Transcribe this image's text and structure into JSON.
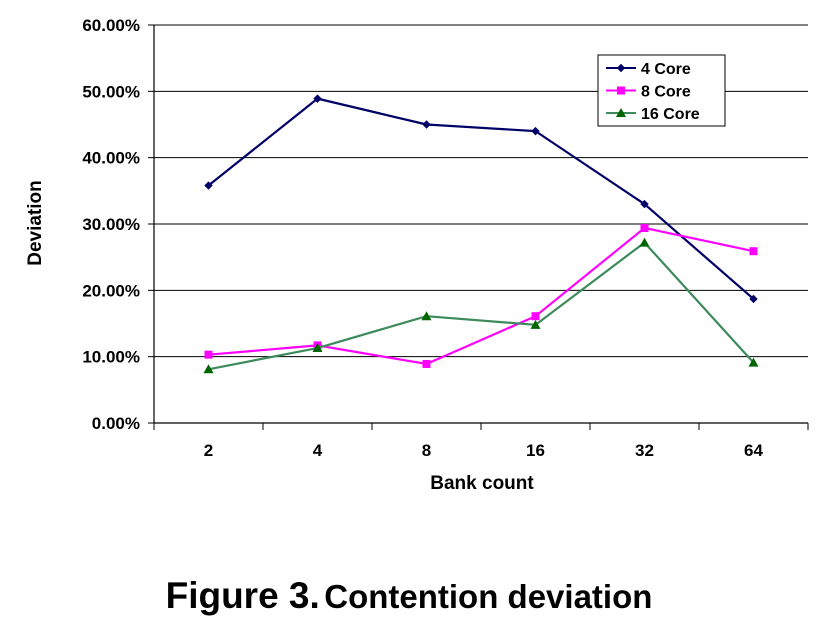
{
  "chart_data": {
    "type": "line",
    "categories": [
      "2",
      "4",
      "8",
      "16",
      "32",
      "64"
    ],
    "series": [
      {
        "name": "4 Core",
        "values": [
          35.8,
          48.9,
          45.0,
          44.0,
          33.0,
          18.7
        ],
        "color": "#000066",
        "marker": "diamond"
      },
      {
        "name": "8 Core",
        "values": [
          10.3,
          11.7,
          8.9,
          16.1,
          29.4,
          25.9
        ],
        "color": "#ff00ff",
        "marker": "square"
      },
      {
        "name": "16 Core",
        "values": [
          8.1,
          11.3,
          16.1,
          14.8,
          27.2,
          9.1
        ],
        "color": "#3d8a5c",
        "marker_color": "#006600",
        "marker": "triangle"
      }
    ],
    "yticks": [
      "0.00%",
      "10.00%",
      "20.00%",
      "30.00%",
      "40.00%",
      "50.00%",
      "60.00%"
    ],
    "ylim": [
      0,
      60
    ],
    "xlabel": "Bank count",
    "ylabel": "Deviation",
    "grid": "horizontal",
    "legend": "top-right"
  },
  "caption": {
    "number": "Figure 3.",
    "text": "Contention deviation"
  }
}
